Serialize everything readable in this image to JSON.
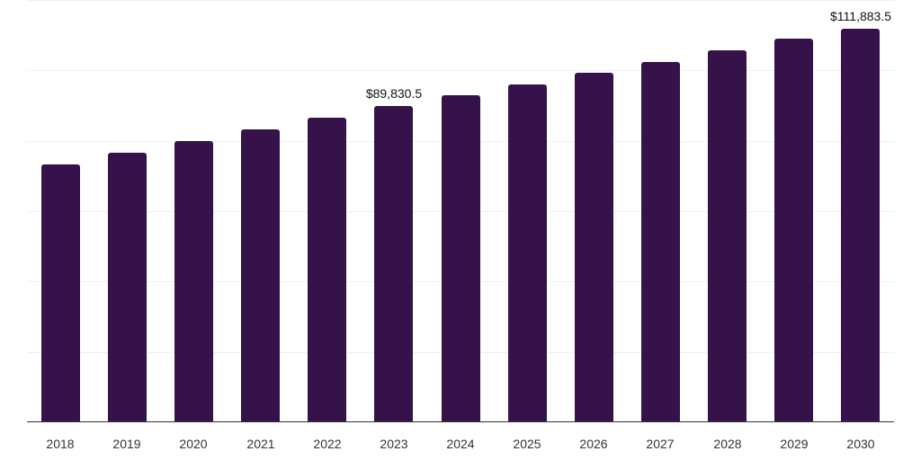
{
  "chart_data": {
    "type": "bar",
    "title": "",
    "xlabel": "",
    "ylabel": "",
    "categories": [
      "2018",
      "2019",
      "2020",
      "2021",
      "2022",
      "2023",
      "2024",
      "2025",
      "2026",
      "2027",
      "2028",
      "2029",
      "2030"
    ],
    "values": [
      73300,
      76700,
      80000,
      83300,
      86600,
      89830.5,
      93000,
      96100,
      99400,
      102500,
      105600,
      108900,
      111883.5
    ],
    "data_labels": [
      {
        "index": 5,
        "text": "$89,830.5"
      },
      {
        "index": 12,
        "text": "$111,883.5"
      }
    ],
    "ylim": [
      0,
      120000
    ],
    "grid": true,
    "gridline_step": 20000,
    "y_axis_labels_visible": false,
    "legend": null,
    "bar_color": "#36124a"
  }
}
